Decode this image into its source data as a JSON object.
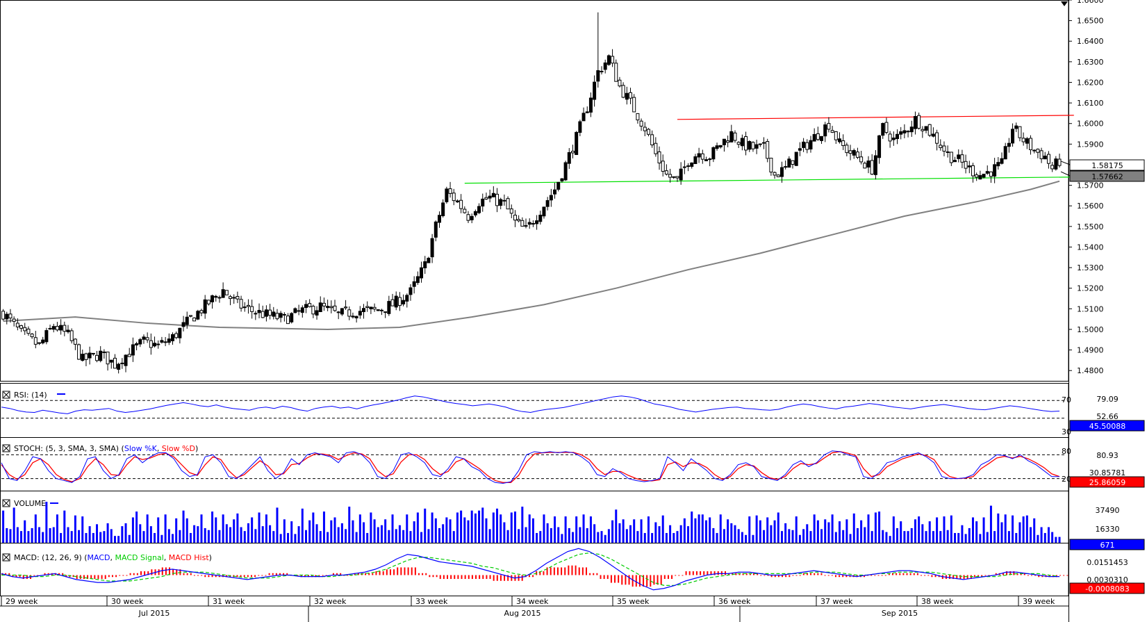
{
  "chart_data": [
    {
      "type": "candlestick",
      "panel": "price",
      "y_range": [
        1.475,
        1.66
      ],
      "y_ticks": [
        "1.6600",
        "1.6500",
        "1.6400",
        "1.6300",
        "1.6200",
        "1.6100",
        "1.6000",
        "1.5900",
        "1.5800",
        "1.5700",
        "1.5600",
        "1.5500",
        "1.5400",
        "1.5300",
        "1.5200",
        "1.5100",
        "1.5000",
        "1.4900",
        "1.4800"
      ],
      "last_price_label": "1.58175",
      "ma_value_label": "1.57662",
      "close_path": [
        [
          0,
          1.508
        ],
        [
          5,
          1.498
        ],
        [
          10,
          1.492
        ],
        [
          14,
          1.502
        ],
        [
          18,
          1.497
        ],
        [
          22,
          1.485
        ],
        [
          27,
          1.488
        ],
        [
          31,
          1.483
        ],
        [
          35,
          1.489
        ],
        [
          39,
          1.494
        ],
        [
          43,
          1.492
        ],
        [
          47,
          1.496
        ],
        [
          52,
          1.505
        ],
        [
          57,
          1.513
        ],
        [
          61,
          1.519
        ],
        [
          65,
          1.512
        ],
        [
          69,
          1.509
        ],
        [
          73,
          1.507
        ],
        [
          78,
          1.505
        ],
        [
          83,
          1.509
        ],
        [
          88,
          1.511
        ],
        [
          93,
          1.507
        ],
        [
          98,
          1.509
        ],
        [
          103,
          1.509
        ],
        [
          108,
          1.512
        ],
        [
          113,
          1.518
        ],
        [
          117,
          1.531
        ],
        [
          120,
          1.55
        ],
        [
          123,
          1.567
        ],
        [
          126,
          1.562
        ],
        [
          129,
          1.555
        ],
        [
          132,
          1.562
        ],
        [
          135,
          1.564
        ],
        [
          139,
          1.561
        ],
        [
          142,
          1.552
        ],
        [
          145,
          1.548
        ],
        [
          149,
          1.558
        ],
        [
          153,
          1.568
        ],
        [
          156,
          1.58
        ],
        [
          159,
          1.593
        ],
        [
          162,
          1.608
        ],
        [
          165,
          1.625
        ],
        [
          168,
          1.632
        ],
        [
          171,
          1.618
        ],
        [
          174,
          1.61
        ],
        [
          178,
          1.598
        ],
        [
          181,
          1.585
        ],
        [
          184,
          1.575
        ],
        [
          187,
          1.572
        ],
        [
          190,
          1.582
        ],
        [
          193,
          1.586
        ],
        [
          196,
          1.584
        ],
        [
          199,
          1.59
        ],
        [
          202,
          1.595
        ],
        [
          205,
          1.59
        ],
        [
          208,
          1.588
        ],
        [
          211,
          1.588
        ],
        [
          214,
          1.575
        ],
        [
          217,
          1.578
        ],
        [
          220,
          1.585
        ],
        [
          223,
          1.59
        ],
        [
          226,
          1.595
        ],
        [
          229,
          1.6
        ],
        [
          232,
          1.59
        ],
        [
          235,
          1.586
        ],
        [
          238,
          1.582
        ],
        [
          241,
          1.578
        ],
        [
          244,
          1.598
        ],
        [
          247,
          1.592
        ],
        [
          250,
          1.596
        ],
        [
          253,
          1.602
        ],
        [
          256,
          1.598
        ],
        [
          259,
          1.592
        ],
        [
          262,
          1.585
        ],
        [
          265,
          1.582
        ],
        [
          268,
          1.578
        ],
        [
          271,
          1.575
        ],
        [
          274,
          1.577
        ],
        [
          277,
          1.58
        ],
        [
          280,
          1.598
        ],
        [
          283,
          1.592
        ],
        [
          286,
          1.587
        ],
        [
          289,
          1.584
        ],
        [
          291,
          1.578
        ],
        [
          293,
          1.582
        ]
      ],
      "ma_path": [
        [
          0,
          1.504
        ],
        [
          20,
          1.506
        ],
        [
          40,
          1.503
        ],
        [
          60,
          1.501
        ],
        [
          90,
          1.5
        ],
        [
          110,
          1.501
        ],
        [
          130,
          1.506
        ],
        [
          150,
          1.512
        ],
        [
          170,
          1.52
        ],
        [
          190,
          1.529
        ],
        [
          210,
          1.537
        ],
        [
          230,
          1.546
        ],
        [
          250,
          1.555
        ],
        [
          270,
          1.562
        ],
        [
          285,
          1.568
        ],
        [
          293,
          1.572
        ]
      ],
      "resistance_line": [
        [
          187,
          1.602
        ],
        [
          297,
          1.604
        ]
      ],
      "support_line": [
        [
          128,
          1.571
        ],
        [
          297,
          1.574
        ]
      ],
      "peak": 1.654,
      "trough": 1.483
    },
    {
      "type": "line",
      "panel": "rsi",
      "title": "RSI: (14)",
      "levels": [
        "70",
        "30"
      ],
      "right_labels": [
        "79.09",
        "52.66"
      ],
      "current_label": "45.50088",
      "values": [
        55,
        52,
        47,
        44,
        43,
        48,
        45,
        42,
        40,
        46,
        49,
        48,
        50,
        52,
        46,
        43,
        45,
        48,
        51,
        55,
        59,
        62,
        65,
        62,
        58,
        56,
        60,
        55,
        52,
        50,
        48,
        53,
        55,
        52,
        57,
        54,
        49,
        46,
        52,
        55,
        57,
        53,
        55,
        51,
        56,
        60,
        63,
        67,
        71,
        76,
        80,
        78,
        74,
        70,
        66,
        63,
        61,
        58,
        60,
        62,
        59,
        55,
        49,
        45,
        43,
        47,
        50,
        52,
        54,
        58,
        62,
        66,
        70,
        74,
        78,
        80,
        78,
        74,
        68,
        62,
        59,
        55,
        50,
        47,
        44,
        47,
        50,
        52,
        54,
        55,
        52,
        51,
        49,
        48,
        50,
        55,
        59,
        62,
        60,
        56,
        53,
        51,
        55,
        57,
        60,
        63,
        61,
        58,
        55,
        53,
        51,
        54,
        57,
        59,
        61,
        58,
        55,
        52,
        50,
        49,
        52,
        55,
        58,
        56,
        53,
        50,
        47,
        45,
        46
      ]
    },
    {
      "type": "line",
      "panel": "stoch",
      "title": "STOCH: (5, 3, SMA, 3, SMA)",
      "series_names": [
        "Slow %K",
        "Slow %D"
      ],
      "levels": [
        "80",
        "20"
      ],
      "right_labels": [
        "80.93",
        "30.85781"
      ],
      "current_label": "25.86059",
      "k": [
        60,
        20,
        15,
        40,
        75,
        70,
        40,
        20,
        15,
        10,
        25,
        70,
        75,
        40,
        20,
        30,
        70,
        80,
        60,
        75,
        85,
        85,
        70,
        40,
        25,
        30,
        75,
        80,
        60,
        25,
        20,
        35,
        55,
        75,
        40,
        20,
        35,
        70,
        55,
        80,
        85,
        80,
        75,
        60,
        85,
        88,
        80,
        60,
        25,
        20,
        40,
        80,
        85,
        75,
        60,
        30,
        25,
        45,
        75,
        70,
        50,
        40,
        20,
        10,
        8,
        12,
        40,
        80,
        88,
        85,
        88,
        85,
        88,
        85,
        75,
        60,
        30,
        25,
        45,
        35,
        20,
        15,
        12,
        15,
        20,
        75,
        60,
        40,
        70,
        55,
        40,
        20,
        15,
        30,
        55,
        60,
        50,
        25,
        20,
        15,
        30,
        55,
        65,
        50,
        60,
        80,
        90,
        88,
        80,
        75,
        25,
        20,
        35,
        60,
        65,
        75,
        80,
        85,
        75,
        60,
        25,
        20,
        20,
        22,
        30,
        55,
        65,
        80,
        78,
        70,
        80,
        65,
        55,
        40,
        25,
        25
      ],
      "d": [
        55,
        30,
        18,
        30,
        60,
        70,
        55,
        30,
        18,
        12,
        20,
        50,
        70,
        55,
        30,
        28,
        55,
        75,
        68,
        72,
        80,
        84,
        75,
        55,
        35,
        28,
        55,
        75,
        68,
        40,
        22,
        30,
        48,
        65,
        52,
        30,
        32,
        55,
        58,
        72,
        82,
        82,
        78,
        68,
        78,
        85,
        82,
        70,
        40,
        25,
        32,
        62,
        80,
        80,
        68,
        45,
        30,
        38,
        62,
        70,
        58,
        45,
        28,
        15,
        10,
        10,
        28,
        62,
        82,
        85,
        86,
        86,
        86,
        86,
        80,
        68,
        45,
        30,
        38,
        38,
        28,
        20,
        15,
        14,
        17,
        55,
        62,
        50,
        60,
        58,
        48,
        30,
        18,
        25,
        45,
        55,
        52,
        35,
        22,
        18,
        25,
        45,
        58,
        55,
        58,
        72,
        85,
        88,
        84,
        78,
        45,
        25,
        30,
        50,
        60,
        70,
        76,
        82,
        78,
        68,
        40,
        25,
        20,
        21,
        25,
        45,
        58,
        72,
        76,
        72,
        76,
        70,
        60,
        48,
        32,
        25
      ]
    },
    {
      "type": "bar",
      "panel": "volume",
      "title": "VOLUME",
      "right_labels": [
        "37490",
        "16330"
      ],
      "current_label": "671",
      "values": [
        33,
        15,
        14,
        36,
        16,
        12,
        23,
        12,
        15,
        29,
        16,
        11,
        42,
        15,
        16,
        29,
        10,
        33,
        16,
        12,
        28,
        13,
        27,
        10,
        17,
        10,
        19,
        11,
        12,
        20,
        14,
        7,
        7,
        17,
        20,
        8,
        26,
        32,
        19,
        12,
        29,
        17,
        10,
        26,
        8,
        29,
        14,
        9,
        25,
        13,
        33,
        25,
        10,
        18,
        17,
        29,
        15,
        13,
        32,
        26,
        13,
        29,
        19,
        16,
        24,
        30,
        16,
        12,
        20,
        26,
        14,
        31,
        17,
        29,
        18,
        12,
        36,
        9,
        24,
        10,
        22,
        9,
        17,
        35,
        13,
        23,
        31,
        19,
        12,
        32,
        11,
        23,
        26,
        16,
        20,
        14,
        37,
        23,
        11,
        29,
        21,
        10,
        31,
        24,
        16,
        18,
        24,
        13,
        29,
        14,
        18,
        13,
        29,
        12,
        22,
        31,
        11,
        35,
        14,
        31,
        25,
        15,
        19,
        26,
        24,
        12,
        31,
        33,
        26,
        23,
        33,
        30,
        33,
        36,
        25,
        14,
        31,
        35,
        29,
        21,
        13,
        31,
        32,
        14,
        37,
        16,
        29,
        25,
        10,
        12,
        29,
        20,
        15,
        27,
        16,
        9,
        27,
        15,
        11,
        27,
        16,
        29,
        15,
        27,
        19,
        11,
        12,
        8,
        14,
        23,
        34,
        20,
        24,
        14,
        18,
        24,
        12,
        24,
        10,
        27,
        10,
        21,
        17,
        28,
        10,
        18,
        10,
        12,
        18,
        25,
        17,
        32,
        25,
        29,
        29,
        23,
        26,
        15,
        10,
        29,
        14,
        24,
        20,
        18,
        14,
        11,
        8,
        27,
        8,
        28,
        23,
        13,
        26,
        18,
        23,
        31,
        12,
        20,
        14,
        13,
        27,
        8,
        14,
        19,
        12,
        29,
        23,
        14,
        24,
        21,
        29,
        11,
        22,
        13,
        24,
        9,
        30,
        15,
        23,
        16,
        29,
        12,
        31,
        32,
        13,
        11,
        7,
        27,
        15,
        22,
        12,
        12,
        15,
        24,
        27,
        19,
        12,
        22,
        12,
        26,
        12,
        27,
        13,
        28,
        10,
        10,
        18,
        9,
        15,
        26,
        22,
        9,
        26,
        11,
        38,
        12,
        30,
        21,
        29,
        12,
        28,
        10,
        21,
        27,
        28,
        16,
        25,
        8,
        16,
        10,
        16,
        11,
        6,
        6
      ]
    },
    {
      "type": "line",
      "panel": "macd",
      "title": "MACD: (12, 26, 9)",
      "series_names": [
        "MACD",
        "MACD Signal",
        "MACD Hist"
      ],
      "right_labels": [
        "0.0151453",
        "0.0030310"
      ],
      "current_label": "-0.0008083",
      "y_range": [
        -0.012,
        0.02
      ],
      "macd": [
        0.001,
        -0.001,
        -0.002,
        -0.001,
        0,
        0.001,
        -0.001,
        -0.003,
        -0.004,
        -0.005,
        -0.005,
        -0.004,
        -0.003,
        -0.001,
        0.001,
        0.003,
        0.004,
        0.003,
        0.002,
        0.001,
        0,
        -0.001,
        -0.002,
        -0.003,
        -0.002,
        -0.001,
        0,
        0,
        -0.001,
        -0.001,
        -0.001,
        0,
        0,
        0.001,
        0.002,
        0.004,
        0.007,
        0.011,
        0.014,
        0.013,
        0.011,
        0.009,
        0.008,
        0.007,
        0.006,
        0.004,
        0.002,
        0,
        -0.002,
        -0.001,
        0.003,
        0.008,
        0.012,
        0.016,
        0.018,
        0.016,
        0.012,
        0.007,
        0.002,
        -0.003,
        -0.007,
        -0.01,
        -0.009,
        -0.007,
        -0.004,
        -0.002,
        0,
        0.001,
        0.001,
        0.002,
        0.002,
        0.001,
        0,
        0,
        0.001,
        0.002,
        0.003,
        0.002,
        0.001,
        0,
        -0.001,
        0,
        0.001,
        0.002,
        0.003,
        0.003,
        0.002,
        0.001,
        -0.001,
        -0.002,
        -0.003,
        -0.002,
        -0.001,
        0,
        0.002,
        0.002,
        0.001,
        0,
        -0.001,
        -0.001
      ],
      "signal": [
        0,
        0,
        0,
        -0.001,
        -0.001,
        0,
        0,
        -0.001,
        -0.002,
        -0.003,
        -0.004,
        -0.004,
        -0.004,
        -0.003,
        -0.002,
        -0.001,
        0.001,
        0.002,
        0.002,
        0.002,
        0.001,
        0,
        -0.001,
        -0.002,
        -0.002,
        -0.002,
        -0.001,
        0,
        0,
        0,
        -0.001,
        -0.001,
        0,
        0,
        0.001,
        0.002,
        0.004,
        0.007,
        0.01,
        0.012,
        0.012,
        0.011,
        0.01,
        0.009,
        0.008,
        0.006,
        0.005,
        0.003,
        0.001,
        0,
        0.001,
        0.004,
        0.008,
        0.011,
        0.014,
        0.015,
        0.014,
        0.011,
        0.007,
        0.003,
        -0.001,
        -0.005,
        -0.007,
        -0.007,
        -0.006,
        -0.004,
        -0.002,
        -0.001,
        0,
        0.001,
        0.001,
        0.001,
        0.001,
        0.001,
        0.001,
        0.001,
        0.002,
        0.002,
        0.002,
        0.001,
        0,
        0,
        0.001,
        0.001,
        0.002,
        0.002,
        0.002,
        0.002,
        0.001,
        0,
        -0.001,
        -0.001,
        -0.001,
        -0.001,
        0,
        0.001,
        0.001,
        0.001,
        0,
        -0.001
      ]
    }
  ],
  "x_axis": {
    "weeks": [
      "29 week",
      "30 week",
      "31 week",
      "32 week",
      "33 week",
      "34 week",
      "35 week",
      "36 week",
      "37 week",
      "38 week",
      "39 week"
    ],
    "months": [
      "Jul 2015",
      "Aug 2015",
      "Sep 2015"
    ]
  },
  "colors": {
    "bull": "#000000",
    "bear": "#ffffff",
    "ma": "#808080",
    "resistance": "#ff0000",
    "support": "#00e000",
    "rsi": "#0000ff",
    "stoch_k": "#0000ff",
    "stoch_d": "#ff0000",
    "volume": "#0000ff",
    "macd": "#0000ff",
    "macd_signal": "#00cc00",
    "macd_hist": "#ff0000"
  }
}
